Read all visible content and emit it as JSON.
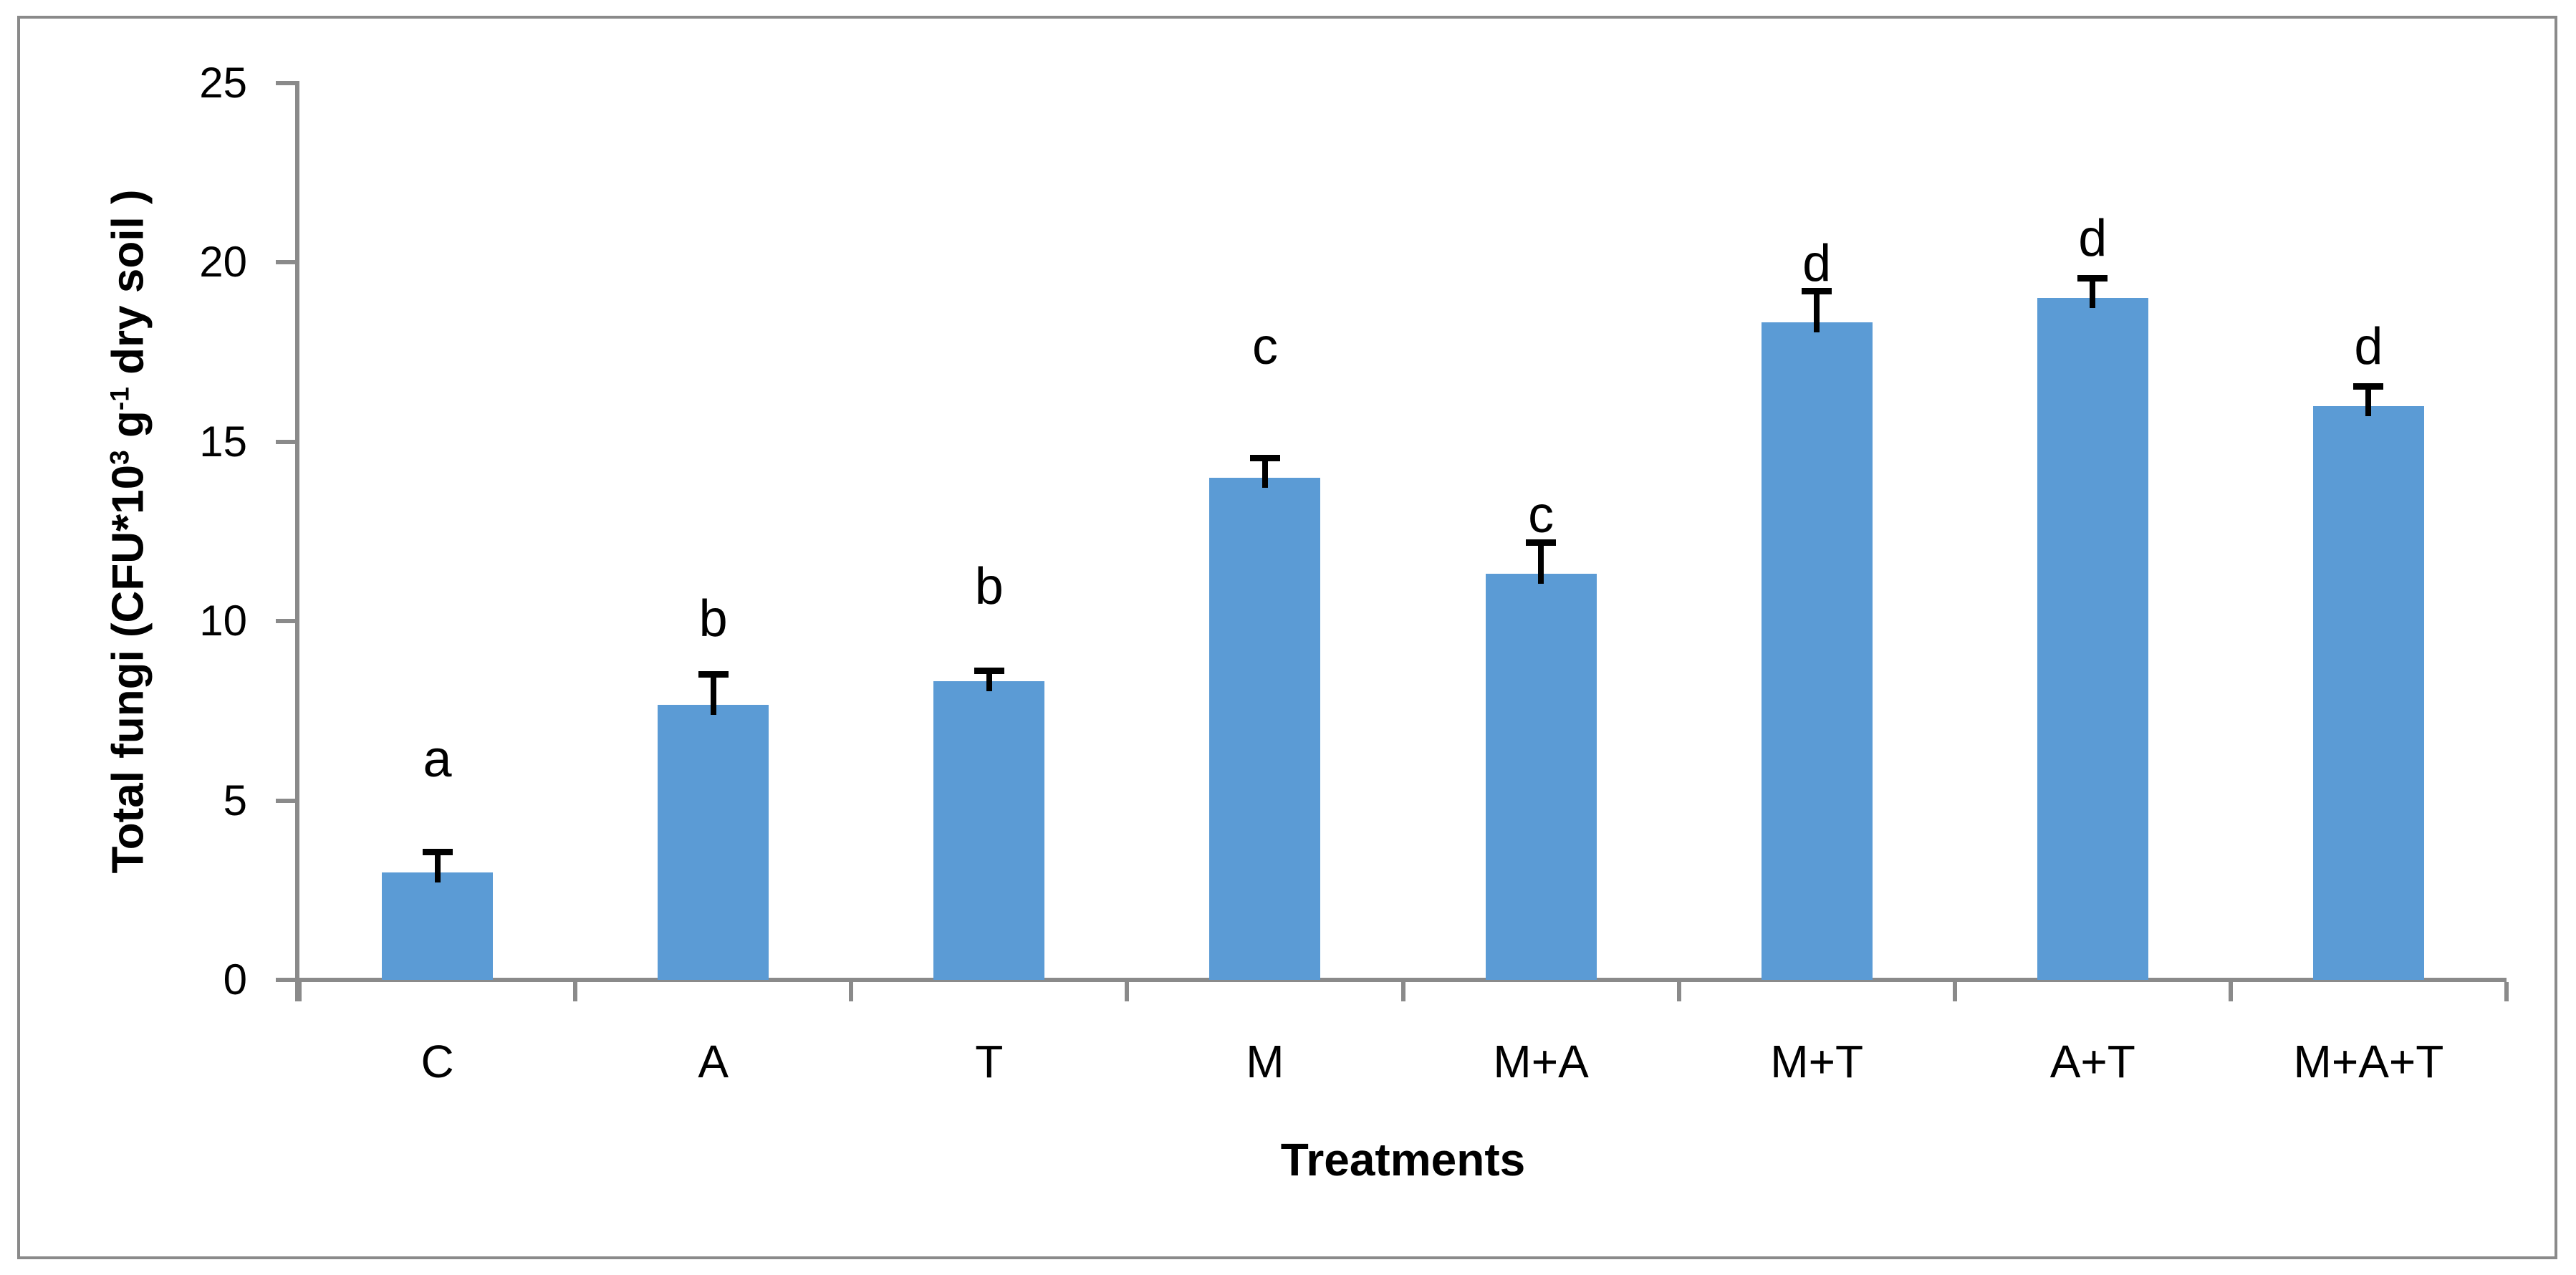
{
  "chart_data": {
    "type": "bar",
    "title": "",
    "xlabel": "Treatments",
    "ylabel": "Total fungi (CFU*10³ g⁻¹ dry soil )",
    "ylabel_parts": [
      {
        "t": "Total fungi (CFU*10"
      },
      {
        "t": "3",
        "sup": true
      },
      {
        "t": " g"
      },
      {
        "t": "-1",
        "sup": true
      },
      {
        "t": " dry soil )"
      }
    ],
    "categories": [
      "C",
      "A",
      "T",
      "M",
      "M+A",
      "M+T",
      "A+T",
      "M+A+T"
    ],
    "series": [
      {
        "name": "Total fungi",
        "values": [
          3.0,
          7.67,
          8.33,
          14.0,
          11.33,
          18.33,
          19.0,
          16.0
        ],
        "errors_plus": [
          0.57,
          0.85,
          0.29,
          0.55,
          0.87,
          0.87,
          0.56,
          0.55
        ],
        "sig_letters": [
          "a",
          "b",
          "b",
          "c",
          "c",
          "d",
          "d",
          "d"
        ],
        "letter_baseline_y": [
          5.7,
          9.6,
          10.5,
          17.2,
          12.5,
          19.5,
          20.2,
          17.2
        ]
      }
    ],
    "ylim": [
      0,
      25
    ],
    "yticks": [
      0,
      5,
      10,
      15,
      20,
      25
    ],
    "grid": false,
    "legend": "none",
    "bar_color": "#5B9BD5",
    "axis_color": "#8a8a8a",
    "error_bar_color": "#000000"
  }
}
